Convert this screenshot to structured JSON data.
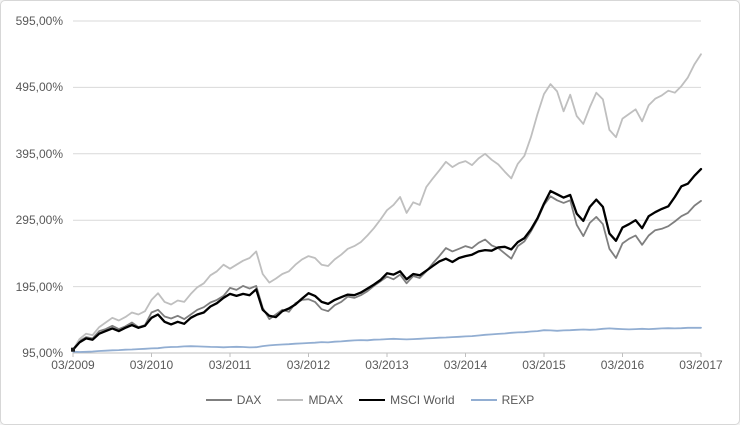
{
  "colors": {
    "background": "#ffffff",
    "frame_border": "#d7d7d7",
    "gridline": "#d9d9d9",
    "axis_line": "#bfbfbf",
    "axis_text": "#595959",
    "start_marker": "#1a1a1a"
  },
  "chart_data": {
    "type": "line",
    "title": "",
    "xlabel": "",
    "ylabel": "",
    "grid": "horizontal",
    "legend_position": "bottom",
    "number_format": "percent with comma decimals",
    "ylim": [
      95,
      595
    ],
    "y_tick_values": [
      595,
      495,
      395,
      295,
      195,
      95
    ],
    "y_tick_labels": [
      "595,00%",
      "495,00%",
      "395,00%",
      "295,00%",
      "195,00%",
      "95,00%"
    ],
    "x_tick_months": [
      0,
      12,
      24,
      36,
      48,
      60,
      72,
      84,
      96
    ],
    "x_tick_labels": [
      "03/2009",
      "03/2010",
      "03/2011",
      "03/2012",
      "03/2013",
      "03/2014",
      "03/2015",
      "03/2016",
      "03/2017"
    ],
    "x_unit": "months since 03/2009, monthly samples",
    "series": [
      {
        "name": "DAX",
        "color": "#7f7f7f",
        "line_width": 1.8,
        "values": [
          100,
          113,
          119,
          117,
          128,
          131,
          136,
          131,
          135,
          141,
          134,
          137,
          156,
          160,
          150,
          147,
          151,
          146,
          153,
          160,
          164,
          171,
          175,
          181,
          193,
          190,
          196,
          192,
          196,
          163,
          146,
          153,
          160,
          157,
          170,
          175,
          176,
          172,
          161,
          158,
          167,
          172,
          180,
          178,
          182,
          188,
          196,
          203,
          210,
          206,
          213,
          200,
          211,
          208,
          218,
          230,
          241,
          253,
          248,
          252,
          256,
          253,
          261,
          266,
          257,
          253,
          245,
          237,
          256,
          263,
          278,
          296,
          318,
          331,
          325,
          321,
          325,
          288,
          271,
          291,
          300,
          289,
          252,
          238,
          260,
          267,
          272,
          258,
          272,
          280,
          282,
          286,
          293,
          301,
          306,
          317,
          324
        ]
      },
      {
        "name": "MDAX",
        "color": "#bfbfbf",
        "line_width": 1.8,
        "values": [
          100,
          116,
          124,
          122,
          134,
          141,
          148,
          144,
          149,
          156,
          153,
          158,
          175,
          185,
          172,
          168,
          174,
          172,
          184,
          194,
          200,
          212,
          218,
          228,
          222,
          228,
          234,
          238,
          248,
          214,
          201,
          207,
          214,
          218,
          228,
          236,
          241,
          238,
          228,
          226,
          236,
          243,
          252,
          256,
          262,
          272,
          283,
          296,
          310,
          318,
          330,
          306,
          322,
          318,
          345,
          358,
          370,
          383,
          375,
          381,
          384,
          378,
          388,
          395,
          386,
          379,
          368,
          358,
          380,
          392,
          420,
          455,
          485,
          500,
          489,
          459,
          484,
          452,
          440,
          465,
          487,
          477,
          431,
          420,
          448,
          455,
          462,
          444,
          468,
          478,
          483,
          490,
          487,
          497,
          510,
          530,
          545
        ]
      },
      {
        "name": "MSCI World",
        "color": "#000000",
        "line_width": 2.3,
        "values": [
          100,
          111,
          117,
          115,
          124,
          128,
          132,
          128,
          133,
          137,
          133,
          136,
          148,
          153,
          142,
          138,
          142,
          139,
          148,
          153,
          156,
          165,
          170,
          178,
          184,
          181,
          184,
          182,
          191,
          160,
          151,
          149,
          158,
          162,
          168,
          177,
          185,
          181,
          172,
          169,
          175,
          179,
          183,
          182,
          186,
          192,
          198,
          205,
          215,
          213,
          218,
          206,
          214,
          212,
          219,
          226,
          233,
          237,
          232,
          238,
          241,
          243,
          248,
          250,
          249,
          254,
          255,
          251,
          262,
          268,
          281,
          298,
          320,
          339,
          334,
          329,
          333,
          305,
          294,
          315,
          326,
          315,
          275,
          264,
          284,
          289,
          295,
          283,
          301,
          307,
          312,
          316,
          330,
          346,
          350,
          362,
          372
        ]
      },
      {
        "name": "REXP",
        "color": "#92aed2",
        "line_width": 1.8,
        "values": [
          97,
          96.5,
          96.8,
          97.2,
          98,
          98.5,
          99,
          99.4,
          100,
          100.2,
          100.8,
          101.4,
          102,
          102.3,
          103.4,
          104,
          104.2,
          105,
          105.2,
          105,
          104.6,
          104.2,
          104,
          103.6,
          104,
          104.4,
          104,
          103.4,
          103.8,
          105.4,
          106.4,
          107.2,
          107.8,
          108.2,
          109,
          109.4,
          110,
          110.5,
          111.4,
          111,
          112,
          112.4,
          113.4,
          114,
          114.4,
          114.2,
          115,
          115.4,
          116,
          116.4,
          116,
          115.5,
          116,
          116.4,
          117,
          117.4,
          118,
          118.4,
          119,
          119.4,
          120,
          120.5,
          121.4,
          122.4,
          123,
          123.8,
          124.4,
          125.4,
          126,
          126.4,
          127.4,
          128,
          129.4,
          129,
          128.5,
          129,
          129.4,
          130,
          130.4,
          130,
          130.4,
          131.4,
          132,
          131.4,
          131,
          130.5,
          131,
          131.4,
          131,
          131.4,
          132,
          132.4,
          132,
          132.4,
          133,
          133,
          133
        ]
      }
    ]
  }
}
